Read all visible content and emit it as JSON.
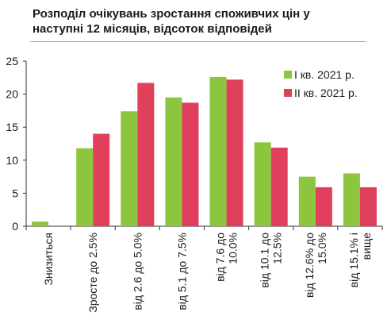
{
  "title_line1": "Розподіл очікувань зростання споживчих цін у",
  "title_line2": "наступні 12 місяців, відсоток відповідей",
  "colors": {
    "series1": "#8cc63f",
    "series2": "#e0405b",
    "title_rule": "#8cc63f",
    "axis": "#333333"
  },
  "chart_data": {
    "type": "bar",
    "title": "Розподіл очікувань зростання споживчих цін у наступні 12 місяців, відсоток відповідей",
    "xlabel": "",
    "ylabel": "",
    "ylim": [
      0,
      25
    ],
    "yticks": [
      0,
      5,
      10,
      15,
      20,
      25
    ],
    "grid": false,
    "legend_position": "right",
    "categories": [
      [
        "Знизиться"
      ],
      [
        "Зросте до 2.5%"
      ],
      [
        "від 2.6 до 5.0%"
      ],
      [
        "від 5.1 до 7.5%"
      ],
      [
        "від 7.6 до",
        "10.0%"
      ],
      [
        "від 10.1 до",
        "12.5%"
      ],
      [
        "від 12.6% до",
        "15.0%"
      ],
      [
        "від 15.1% і",
        "вище"
      ]
    ],
    "series": [
      {
        "name": "I кв. 2021 р.",
        "color": "#8cc63f",
        "values": [
          0.7,
          11.8,
          17.4,
          19.5,
          22.6,
          12.7,
          7.5,
          8.0
        ]
      },
      {
        "name": "II кв. 2021 р.",
        "color": "#e0405b",
        "values": [
          0,
          14.0,
          21.7,
          18.7,
          22.2,
          11.9,
          5.9,
          5.9
        ]
      }
    ]
  }
}
